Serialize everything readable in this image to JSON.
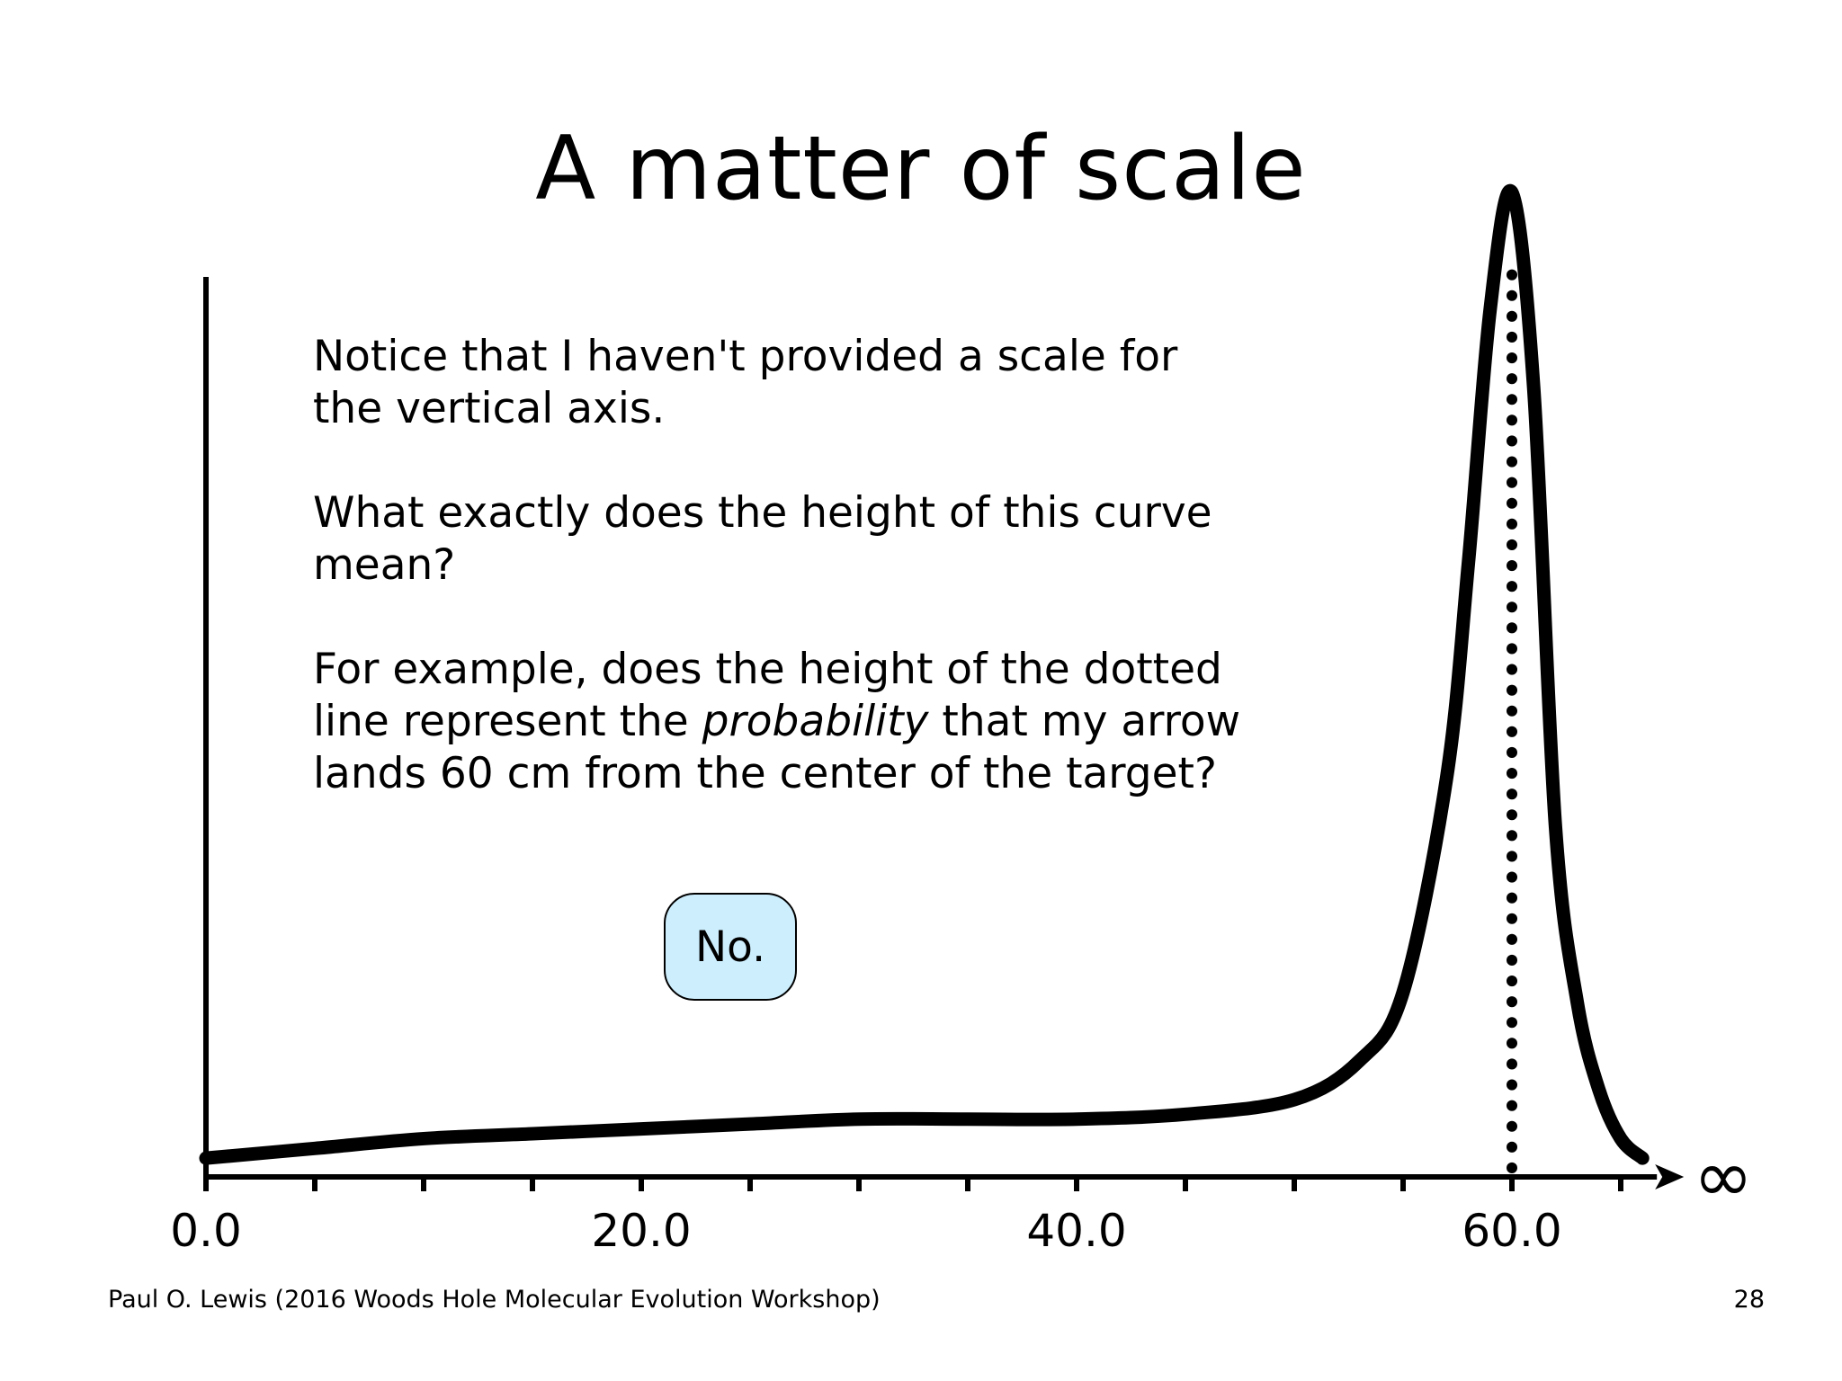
{
  "slide": {
    "title": "A matter of scale",
    "paragraphs": {
      "p1": "Notice that I haven't provided a scale for the vertical axis.",
      "p2": "What exactly does the height of this curve mean?",
      "p3_before": "For example, does the height of the dotted line represent the ",
      "p3_emphasis": "probability",
      "p3_after": " that my arrow lands 60 cm from the center of the target?"
    },
    "answer": "No.",
    "footer": "Paul O. Lewis (2016 Woods Hole Molecular Evolution Workshop)",
    "page_number": "28"
  },
  "colors": {
    "answer_box": "#cdeefd",
    "curve": "#000000"
  },
  "chart_data": {
    "type": "line",
    "title": "",
    "xlabel": "",
    "ylabel": "",
    "xlim": [
      0,
      66
    ],
    "x_tick_labels": [
      {
        "x": 0,
        "label": "0.0"
      },
      {
        "x": 20,
        "label": "20.0"
      },
      {
        "x": 40,
        "label": "40.0"
      },
      {
        "x": 60,
        "label": "60.0"
      }
    ],
    "minor_tick_step": 5,
    "axis_end_symbol": "∞",
    "y_scale_labeled": false,
    "series": [
      {
        "x": [
          0,
          5,
          10,
          15,
          20,
          25,
          30,
          35,
          40,
          45,
          50,
          53,
          55,
          57,
          58,
          59,
          60,
          61,
          62,
          63,
          64,
          65,
          66
        ],
        "y": [
          0.01,
          0.02,
          0.03,
          0.035,
          0.04,
          0.045,
          0.05,
          0.05,
          0.05,
          0.055,
          0.07,
          0.11,
          0.18,
          0.4,
          0.62,
          0.88,
          1.0,
          0.8,
          0.35,
          0.17,
          0.08,
          0.03,
          0.01
        ]
      }
    ],
    "dotted_line": {
      "x": 60
    }
  }
}
